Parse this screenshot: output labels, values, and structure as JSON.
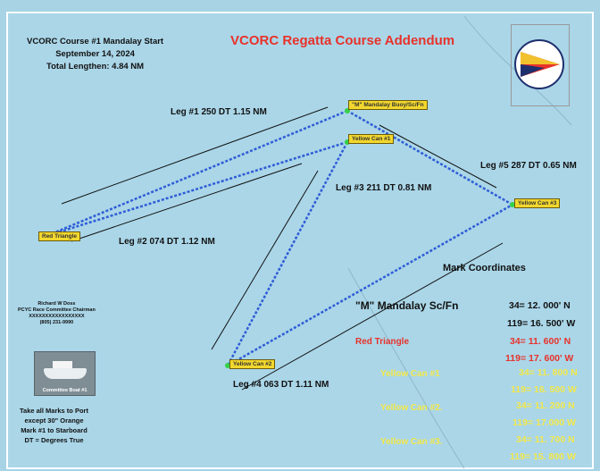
{
  "title": "VCORC Regatta Course Addendum",
  "course_info": {
    "line1": "VCORC Course #1 Mandalay Start",
    "line2": "September 14, 2024",
    "line3": "Total Lengthen: 4.84 NM"
  },
  "marks": [
    {
      "label": "\"M\" Mandalay Buoy/Sc/Fn"
    },
    {
      "label": "Yellow Can #1"
    },
    {
      "label": "Red Triangle"
    },
    {
      "label": "Yellow Can #3"
    },
    {
      "label": "Yellow Can #2"
    }
  ],
  "legs": [
    {
      "label": "Leg #1  250 DT  1.15 NM"
    },
    {
      "label": "Leg #2  074 DT  1.12 NM"
    },
    {
      "label": "Leg #3  211 DT  0.81 NM"
    },
    {
      "label": "Leg #4  063 DT  1.11 NM"
    },
    {
      "label": "Leg #5  287 DT  0.65 NM"
    }
  ],
  "coordinates": {
    "heading": "Mark Coordinates",
    "rows": [
      {
        "name": "\"M\" Mandalay Sc/Fn",
        "lat": "34= 12. 000' N",
        "lon": "119= 16. 500' W",
        "color": "#111111"
      },
      {
        "name": "Red Triangle",
        "lat": "34= 11. 600' N",
        "lon": "119= 17. 600' W",
        "color": "#e8322a"
      },
      {
        "name": "Yellow Can #1",
        "lat": "34= 11. 800 N",
        "lon": "119= 16. 500 W",
        "color": "#f3e84a"
      },
      {
        "name": "Yellow Can #2.",
        "lat": "34= 11. 200 N",
        "lon": "119= 17.000 W",
        "color": "#f3e84a"
      },
      {
        "name": "Yellow Can #3.",
        "lat": "34= 11. 700 N",
        "lon": "119= 15. 800 W",
        "color": "#f3e84a"
      }
    ]
  },
  "contact": {
    "name": "Richard W Doss",
    "role": "PCYC Race Committee Chairman",
    "email": "XXXXXXXXXXXXXXXXX",
    "phone": "(805) 231-9990"
  },
  "boat_caption": "Committee Boat #1",
  "footer": {
    "line1": "Take all Marks to Port",
    "line2": "except 30\" Orange",
    "line3": "Mark #1 to Starboard",
    "line4": "DT = Degrees True"
  },
  "colors": {
    "water": "#a7d3e5",
    "course_line": "#2f5dd6",
    "mark_fill": "#f2d72e",
    "title": "#e8322a"
  }
}
